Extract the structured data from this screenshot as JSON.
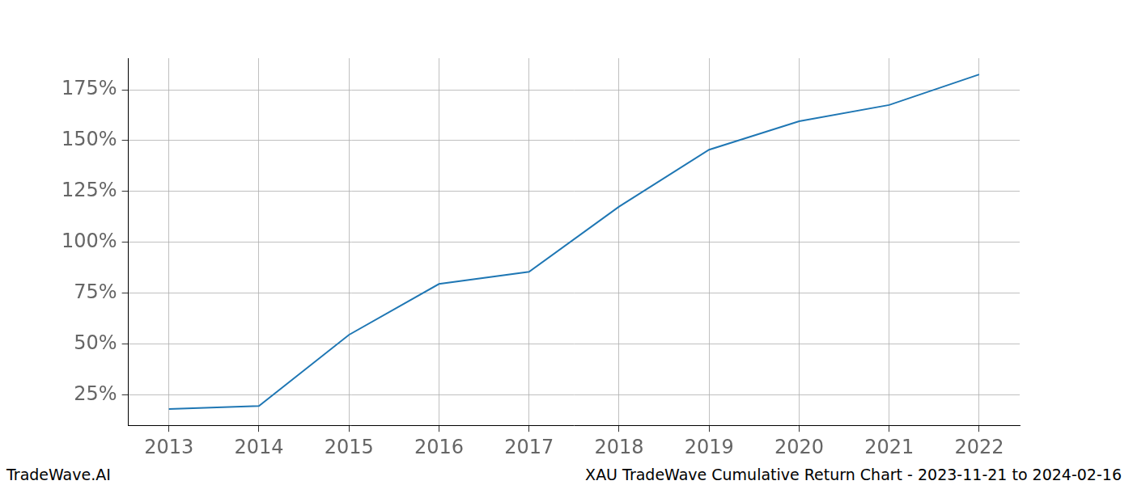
{
  "chart_data": {
    "type": "line",
    "x": [
      2013,
      2014,
      2015,
      2016,
      2017,
      2018,
      2019,
      2020,
      2021,
      2022
    ],
    "values": [
      18,
      19.5,
      54.5,
      79.5,
      85.5,
      117.5,
      145.5,
      159.5,
      167.5,
      182.5
    ],
    "color": "#1f77b4",
    "xlim": [
      2012.55,
      2022.45
    ],
    "xticks": [
      2013,
      2014,
      2015,
      2016,
      2017,
      2018,
      2019,
      2020,
      2021,
      2022
    ],
    "ylim": [
      10,
      190.5
    ],
    "yticks": [
      {
        "value": 25,
        "label": "25%"
      },
      {
        "value": 50,
        "label": "50%"
      },
      {
        "value": 75,
        "label": "75%"
      },
      {
        "value": 100,
        "label": "100%"
      },
      {
        "value": 125,
        "label": "125%"
      },
      {
        "value": 150,
        "label": "150%"
      },
      {
        "value": 175,
        "label": "175%"
      }
    ],
    "grid": true,
    "annotations": [
      "TradeWave.AI",
      "XAU TradeWave Cumulative Return Chart - 2023-11-21 to 2024-02-16"
    ]
  }
}
